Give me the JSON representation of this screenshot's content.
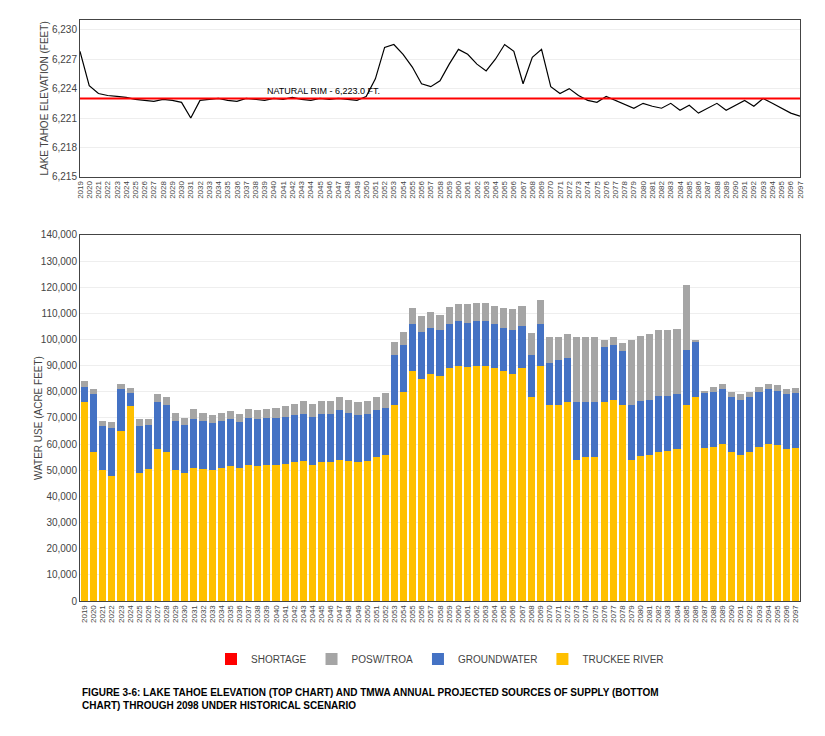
{
  "chart_data": [
    {
      "type": "line",
      "ylabel": "LAKE TAHOE ELEVATION (FEET)",
      "categories": [
        2019,
        2020,
        2021,
        2022,
        2023,
        2024,
        2025,
        2026,
        2027,
        2028,
        2029,
        2030,
        2031,
        2032,
        2033,
        2034,
        2035,
        2036,
        2037,
        2038,
        2039,
        2040,
        2041,
        2042,
        2043,
        2044,
        2045,
        2046,
        2047,
        2048,
        2049,
        2050,
        2051,
        2052,
        2053,
        2054,
        2055,
        2056,
        2057,
        2058,
        2059,
        2060,
        2061,
        2062,
        2063,
        2064,
        2065,
        2066,
        2067,
        2068,
        2069,
        2070,
        2071,
        2072,
        2073,
        2074,
        2075,
        2076,
        2077,
        2078,
        2079,
        2080,
        2081,
        2082,
        2083,
        2084,
        2085,
        2086,
        2087,
        2088,
        2089,
        2090,
        2091,
        2092,
        2093,
        2094,
        2095,
        2096,
        2097
      ],
      "values": [
        6227.8,
        6224.3,
        6223.5,
        6223.3,
        6223.2,
        6223.1,
        6222.9,
        6222.8,
        6222.7,
        6222.9,
        6222.8,
        6222.6,
        6221.0,
        6222.8,
        6222.9,
        6223.0,
        6222.8,
        6222.7,
        6223.0,
        6222.9,
        6222.8,
        6223.0,
        6222.9,
        6223.1,
        6222.9,
        6222.8,
        6223.0,
        6222.9,
        6223.0,
        6222.9,
        6222.8,
        6223.2,
        6225.0,
        6228.2,
        6228.5,
        6227.5,
        6226.2,
        6224.5,
        6224.2,
        6224.8,
        6226.5,
        6228.0,
        6227.5,
        6226.5,
        6225.8,
        6227.0,
        6228.5,
        6227.8,
        6224.5,
        6227.2,
        6228.0,
        6224.2,
        6223.5,
        6224.0,
        6223.3,
        6222.8,
        6222.6,
        6223.2,
        6222.8,
        6222.4,
        6222.0,
        6222.5,
        6222.2,
        6222.0,
        6222.5,
        6221.8,
        6222.3,
        6221.5,
        6222.0,
        6222.5,
        6221.8,
        6222.3,
        6222.8,
        6222.2,
        6223.0,
        6222.5,
        6222.0,
        6221.5,
        6221.2
      ],
      "color": "#000000",
      "ylim": [
        6215,
        6231
      ],
      "yticks": [
        {
          "value": 6215,
          "label": "6,215"
        },
        {
          "value": 6218,
          "label": "6,218"
        },
        {
          "value": 6221,
          "label": "6,221"
        },
        {
          "value": 6224,
          "label": "6,224"
        },
        {
          "value": 6227,
          "label": "6,227"
        },
        {
          "value": 6230,
          "label": "6,230"
        }
      ],
      "grid": true,
      "reference_lines": [
        {
          "y": 6223.0,
          "color": "#FF0000",
          "label": "NATURAL RIM - 6,223.0 FT.",
          "label_x": 2039
        }
      ]
    },
    {
      "type": "bar",
      "stacked": true,
      "ylabel": "WATER USE (ACRE FEET)",
      "categories": [
        2019,
        2020,
        2021,
        2022,
        2023,
        2024,
        2025,
        2026,
        2027,
        2028,
        2029,
        2030,
        2031,
        2032,
        2033,
        2034,
        2035,
        2036,
        2037,
        2038,
        2039,
        2040,
        2041,
        2042,
        2043,
        2044,
        2045,
        2046,
        2047,
        2048,
        2049,
        2050,
        2051,
        2052,
        2053,
        2054,
        2055,
        2056,
        2057,
        2058,
        2059,
        2060,
        2061,
        2062,
        2063,
        2064,
        2065,
        2066,
        2067,
        2068,
        2069,
        2070,
        2071,
        2072,
        2073,
        2074,
        2075,
        2076,
        2077,
        2078,
        2079,
        2080,
        2081,
        2082,
        2083,
        2084,
        2085,
        2086,
        2087,
        2088,
        2089,
        2090,
        2091,
        2092,
        2093,
        2094,
        2095,
        2096,
        2097
      ],
      "series": [
        {
          "name": "TRUCKEE RIVER",
          "color": "#FFC000",
          "values": [
            76000,
            57000,
            50000,
            48000,
            65000,
            74500,
            49000,
            50500,
            58000,
            57000,
            50000,
            49000,
            51000,
            50500,
            50000,
            51000,
            51500,
            51000,
            52000,
            51500,
            52000,
            52000,
            52500,
            53000,
            53500,
            52000,
            53000,
            53000,
            54000,
            53500,
            53000,
            53500,
            55000,
            56000,
            75000,
            80000,
            88000,
            85000,
            87000,
            86000,
            89000,
            90000,
            89500,
            90000,
            90000,
            89000,
            88000,
            87000,
            89000,
            78000,
            90000,
            75000,
            75000,
            76000,
            54000,
            55000,
            55000,
            76000,
            77000,
            75000,
            54000,
            55500,
            56000,
            57000,
            57500,
            58000,
            75000,
            78000,
            58500,
            59000,
            60000,
            57000,
            56000,
            57000,
            59000,
            60000,
            59500,
            58000,
            58500
          ]
        },
        {
          "name": "GROUNDWATER",
          "color": "#4472C4",
          "values": [
            6000,
            22000,
            17000,
            18000,
            16000,
            5000,
            18000,
            17000,
            18000,
            18000,
            19000,
            18500,
            18500,
            18500,
            18000,
            18000,
            18000,
            17500,
            18000,
            18000,
            18000,
            18000,
            18000,
            18000,
            18000,
            18500,
            18500,
            18500,
            19000,
            18500,
            18000,
            18000,
            18000,
            18000,
            19000,
            18000,
            18000,
            18000,
            17500,
            17500,
            17000,
            17000,
            17000,
            17000,
            17000,
            17000,
            16500,
            16500,
            16000,
            16000,
            16000,
            16000,
            17000,
            17000,
            22000,
            21000,
            21000,
            21000,
            21000,
            20500,
            21000,
            21000,
            21000,
            21500,
            21000,
            21000,
            21000,
            21000,
            21000,
            21000,
            21000,
            21000,
            21000,
            21000,
            21000,
            21000,
            21000,
            21000,
            21000
          ]
        },
        {
          "name": "POSW/TROA",
          "color": "#A5A5A5",
          "values": [
            2000,
            2000,
            2000,
            2500,
            2000,
            2000,
            2500,
            2000,
            3000,
            3000,
            3000,
            2500,
            4000,
            3000,
            3000,
            3000,
            3000,
            3000,
            3500,
            3500,
            3500,
            4000,
            4000,
            4500,
            5000,
            5000,
            5000,
            5000,
            5000,
            5000,
            5000,
            5000,
            5000,
            5500,
            5000,
            5000,
            6000,
            6000,
            6000,
            6000,
            6500,
            6500,
            7000,
            7000,
            7000,
            7000,
            7500,
            8000,
            8000,
            8500,
            9000,
            10000,
            9000,
            9000,
            25000,
            25000,
            25000,
            3000,
            3000,
            3000,
            25000,
            25000,
            25000,
            25000,
            25000,
            25000,
            25000,
            1000,
            1000,
            2000,
            2000,
            2000,
            2000,
            2000,
            2000,
            2000,
            2000,
            2000,
            2000
          ]
        },
        {
          "name": "SHORTAGE",
          "color": "#FF0000",
          "values": [
            0,
            0,
            0,
            0,
            0,
            0,
            0,
            0,
            0,
            0,
            0,
            0,
            0,
            0,
            0,
            0,
            0,
            0,
            0,
            0,
            0,
            0,
            0,
            0,
            0,
            0,
            0,
            0,
            0,
            0,
            0,
            0,
            0,
            0,
            0,
            0,
            0,
            0,
            0,
            0,
            0,
            0,
            0,
            0,
            0,
            0,
            0,
            0,
            0,
            0,
            0,
            0,
            0,
            0,
            0,
            0,
            0,
            0,
            0,
            0,
            0,
            0,
            0,
            0,
            0,
            0,
            0,
            0,
            0,
            0,
            0,
            0,
            0,
            0,
            0,
            0,
            0,
            0,
            0
          ]
        }
      ],
      "ylim": [
        0,
        140000
      ],
      "yticks": [
        0,
        {
          "value": 10000,
          "label": "10,000"
        },
        {
          "value": 20000,
          "label": "20,000"
        },
        {
          "value": 30000,
          "label": "30,000"
        },
        {
          "value": 40000,
          "label": "40,000"
        },
        {
          "value": 50000,
          "label": "50,000"
        },
        {
          "value": 60000,
          "label": "60,000"
        },
        {
          "value": 70000,
          "label": "70,000"
        },
        {
          "value": 80000,
          "label": "80,000"
        },
        {
          "value": 90000,
          "label": "90,000"
        },
        {
          "value": 100000,
          "label": "100,000"
        },
        {
          "value": 110000,
          "label": "110,000"
        },
        {
          "value": 120000,
          "label": "120,000"
        },
        {
          "value": 130000,
          "label": "130,000"
        },
        {
          "value": 140000,
          "label": "140,000"
        }
      ],
      "grid": true,
      "legend": "bottom",
      "caption": "FIGURE 3-6: LAKE TAHOE ELEVATION (TOP CHART) AND TMWA ANNUAL PROJECTED SOURCES OF SUPPLY (BOTTOM\nCHART) THROUGH 2098 UNDER HISTORICAL SCENARIO"
    }
  ]
}
